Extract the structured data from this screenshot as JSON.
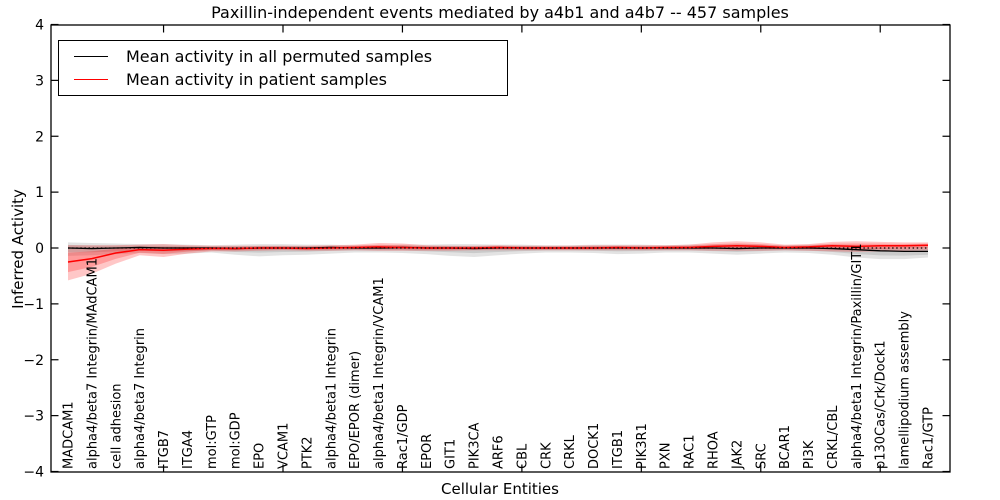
{
  "title": "Paxillin-independent events mediated by a4b1 and a4b7 -- 457 samples",
  "axes": {
    "ylabel": "Inferred Activity",
    "xlabel": "Cellular Entities",
    "yticks": [
      4,
      3,
      2,
      1,
      0,
      -1,
      -2,
      -3,
      -4
    ],
    "xticks_at_category": [
      5,
      10,
      15,
      20,
      25,
      30,
      35
    ],
    "ylim": [
      -4,
      4
    ]
  },
  "legend": {
    "items": [
      {
        "label": "Mean activity in all permuted samples",
        "color": "#000000"
      },
      {
        "label": "Mean activity in patient samples",
        "color": "#ff0000"
      }
    ]
  },
  "chart_data": {
    "type": "line",
    "title": "Paxillin-independent events mediated by a4b1 and a4b7 -- 457 samples",
    "xlabel": "Cellular Entities",
    "ylabel": "Inferred Activity",
    "ylim": [
      -4,
      4
    ],
    "grid": false,
    "legend_position": "upper left",
    "zero_reference_line": 0,
    "categories": [
      "MADCAM1",
      "alpha4/beta7 Integrin/MAdCAM1",
      "cell adhesion",
      "alpha4/beta7 Integrin",
      "ITGB7",
      "ITGA4",
      "mol:GTP",
      "mol:GDP",
      "EPO",
      "VCAM1",
      "PTK2",
      "alpha4/beta1 Integrin",
      "EPO/EPOR (dimer)",
      "alpha4/beta1 Integrin/VCAM1",
      "Rac1/GDP",
      "EPOR",
      "GIT1",
      "PIK3CA",
      "ARF6",
      "CBL",
      "CRK",
      "CRKL",
      "DOCK1",
      "ITGB1",
      "PIK3R1",
      "PXN",
      "RAC1",
      "RHOA",
      "JAK2",
      "SRC",
      "BCAR1",
      "PI3K",
      "CRKL/CBL",
      "alpha4/beta1 Integrin/Paxillin/GIT1",
      "p130Cas/Crk/Dock1",
      "lamellipodium assembly",
      "Rac1/GTP"
    ],
    "series": [
      {
        "name": "Mean activity in all permuted samples",
        "color": "#000000",
        "band_color": "rgba(0,0,0,0.11)",
        "mean": [
          0.0,
          -0.01,
          0.0,
          0.01,
          0.0,
          0.0,
          0.0,
          -0.01,
          0.0,
          0.0,
          0.0,
          0.01,
          0.0,
          0.0,
          0.01,
          0.0,
          0.0,
          -0.01,
          0.0,
          0.0,
          0.0,
          0.0,
          0.0,
          0.0,
          0.0,
          0.0,
          0.0,
          0.0,
          -0.01,
          0.0,
          0.0,
          0.0,
          -0.01,
          -0.03,
          -0.05,
          -0.06,
          -0.06
        ],
        "upper": [
          0.1,
          0.09,
          0.08,
          0.07,
          0.07,
          0.06,
          0.05,
          0.06,
          0.07,
          0.07,
          0.06,
          0.06,
          0.05,
          0.05,
          0.06,
          0.06,
          0.07,
          0.07,
          0.06,
          0.06,
          0.05,
          0.05,
          0.06,
          0.06,
          0.06,
          0.05,
          0.06,
          0.06,
          0.07,
          0.06,
          0.05,
          0.06,
          0.06,
          0.05,
          0.04,
          0.03,
          0.03
        ],
        "lower": [
          -0.14,
          -0.13,
          -0.11,
          -0.09,
          -0.11,
          -0.1,
          -0.08,
          -0.12,
          -0.15,
          -0.13,
          -0.12,
          -0.1,
          -0.08,
          -0.08,
          -0.09,
          -0.11,
          -0.14,
          -0.16,
          -0.13,
          -0.1,
          -0.08,
          -0.08,
          -0.09,
          -0.11,
          -0.1,
          -0.08,
          -0.08,
          -0.1,
          -0.12,
          -0.1,
          -0.08,
          -0.09,
          -0.12,
          -0.17,
          -0.2,
          -0.2,
          -0.17
        ]
      },
      {
        "name": "Mean activity in patient samples",
        "color": "#ff0000",
        "band_color": "rgba(255,0,0,0.22)",
        "mean": [
          -0.25,
          -0.19,
          -0.09,
          -0.03,
          -0.04,
          -0.02,
          -0.01,
          -0.01,
          0.0,
          0.0,
          -0.01,
          0.0,
          0.01,
          0.02,
          0.01,
          0.0,
          0.0,
          0.0,
          0.01,
          0.0,
          0.0,
          0.0,
          0.0,
          0.01,
          0.0,
          0.01,
          0.01,
          0.03,
          0.04,
          0.03,
          0.01,
          0.02,
          0.04,
          0.03,
          0.04,
          0.04,
          0.05
        ],
        "upper": [
          0.05,
          0.05,
          0.05,
          0.06,
          0.07,
          0.05,
          0.04,
          0.04,
          0.04,
          0.04,
          0.04,
          0.05,
          0.06,
          0.09,
          0.08,
          0.05,
          0.04,
          0.04,
          0.05,
          0.04,
          0.04,
          0.04,
          0.05,
          0.05,
          0.05,
          0.05,
          0.06,
          0.1,
          0.12,
          0.1,
          0.06,
          0.07,
          0.11,
          0.12,
          0.11,
          0.1,
          0.1
        ],
        "lower": [
          -0.58,
          -0.46,
          -0.28,
          -0.13,
          -0.16,
          -0.1,
          -0.06,
          -0.06,
          -0.05,
          -0.04,
          -0.05,
          -0.05,
          -0.04,
          -0.05,
          -0.05,
          -0.05,
          -0.05,
          -0.04,
          -0.04,
          -0.04,
          -0.04,
          -0.04,
          -0.04,
          -0.04,
          -0.04,
          -0.04,
          -0.04,
          -0.05,
          -0.05,
          -0.05,
          -0.04,
          -0.05,
          -0.06,
          -0.07,
          -0.06,
          -0.05,
          -0.04
        ]
      }
    ]
  }
}
